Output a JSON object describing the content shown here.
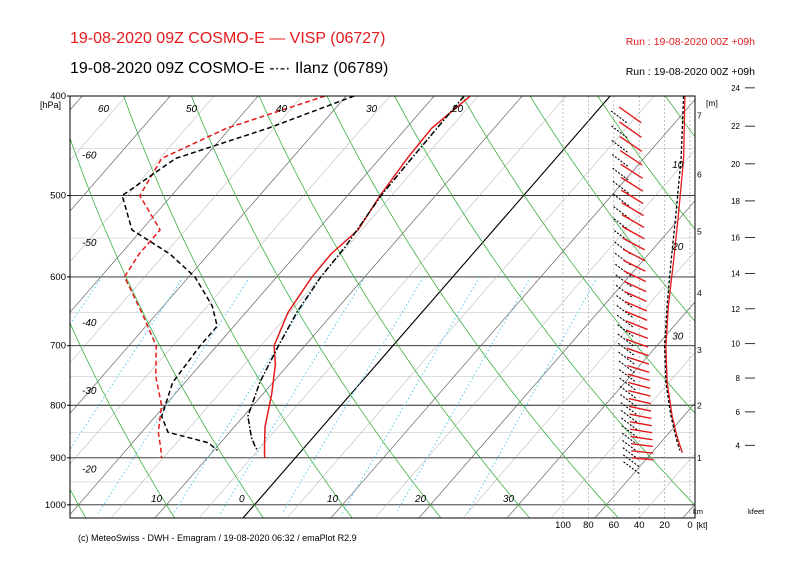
{
  "header": {
    "line1": "19-08-2020 09Z COSMO-E  — VISP (06727)",
    "line2": "19-08-2020 09Z COSMO-E  -·-· Ilanz (06789)",
    "run1": "Run : 19-08-2020 00Z +09h",
    "run2": "Run : 19-08-2020 00Z +09h",
    "color_visp": "#e41a1c",
    "color_ilanz": "#000000"
  },
  "footer": "(c) MeteoSwiss - DWH - Emagram / 19-08-2020  06:32 / emaPlot R2.9",
  "chart_data": {
    "type": "line",
    "title": "Emagram",
    "pressure_axis": {
      "unit_label": "[hPa]",
      "range": [
        1030,
        400
      ],
      "ticks": [
        400,
        500,
        600,
        700,
        800,
        900,
        1000
      ],
      "scale": "log"
    },
    "temperature_axis": {
      "ticks": [
        -70,
        -60,
        -50,
        -40,
        -30,
        -20,
        -10,
        0,
        10,
        20,
        30
      ],
      "tick_labels": [
        "-60",
        "-50",
        "-40",
        "-30",
        "-20",
        "10",
        "0",
        "10",
        "20",
        "30"
      ],
      "skew": true
    },
    "left_isotherm_labels": [
      "-60",
      "-50",
      "-40",
      "-30",
      "-20"
    ],
    "upper_isotherm_labels": [
      "60",
      "50",
      "40",
      "30",
      "20"
    ],
    "height_m_axis": {
      "label": "[m]",
      "ticks": [
        {
          "km": 7,
          "p": 418
        },
        {
          "km": 6,
          "p": 477
        },
        {
          "km": 5,
          "p": 542
        },
        {
          "km": 4,
          "p": 622
        },
        {
          "km": 3,
          "p": 707
        },
        {
          "km": 2,
          "p": 800
        },
        {
          "km": 1,
          "p": 900
        }
      ],
      "unit": "km"
    },
    "height_kfeet_axis": {
      "ticks": [
        24,
        22,
        20,
        18,
        16,
        14,
        12,
        10,
        8,
        6,
        4
      ],
      "unit": "kfeet"
    },
    "wind_axis": {
      "ticks": [
        100,
        80,
        60,
        40,
        20,
        0
      ],
      "unit": "[kt]"
    },
    "wind_profile_labels": [
      {
        "text": "10",
        "p": 470
      },
      {
        "text": "20",
        "p": 565
      },
      {
        "text": "30",
        "p": 690
      }
    ],
    "series": [
      {
        "name": "VISP (06727) temperature",
        "color": "#e41a1c",
        "style": "solid",
        "points": [
          [
            -15.9,
            400
          ],
          [
            -17.1,
            430
          ],
          [
            -16.9,
            460
          ],
          [
            -16.3,
            500
          ],
          [
            -15.4,
            540
          ],
          [
            -16.1,
            570
          ],
          [
            -16.0,
            600
          ],
          [
            -15.2,
            650
          ],
          [
            -13.5,
            700
          ],
          [
            -11.5,
            730
          ],
          [
            -9.0,
            780
          ],
          [
            -6.5,
            840
          ],
          [
            -4.5,
            880
          ],
          [
            -3.5,
            900
          ]
        ]
      },
      {
        "name": "VISP (06727) dew point",
        "color": "#e41a1c",
        "style": "dash",
        "points": [
          [
            -32.4,
            400
          ],
          [
            -40.4,
            430
          ],
          [
            -44.8,
            460
          ],
          [
            -43.6,
            500
          ],
          [
            -37.9,
            540
          ],
          [
            -37.9,
            570
          ],
          [
            -37.3,
            600
          ],
          [
            -31.8,
            650
          ],
          [
            -26.9,
            700
          ],
          [
            -23.9,
            750
          ],
          [
            -20.4,
            800
          ],
          [
            -18.1,
            850
          ],
          [
            -16.3,
            880
          ],
          [
            -15.2,
            900
          ]
        ]
      },
      {
        "name": "Ilanz (06789) temperature",
        "color": "#000000",
        "style": "dashdot",
        "points": [
          [
            -16.6,
            400
          ],
          [
            -16.4,
            460
          ],
          [
            -16.2,
            500
          ],
          [
            -15.2,
            560
          ],
          [
            -15.0,
            600
          ],
          [
            -14.2,
            650
          ],
          [
            -13.0,
            700
          ],
          [
            -11.5,
            760
          ],
          [
            -9.5,
            820
          ],
          [
            -7.0,
            860
          ],
          [
            -5.5,
            880
          ],
          [
            -5.0,
            885
          ]
        ]
      },
      {
        "name": "Ilanz (06789) dew point",
        "color": "#000000",
        "style": "dash",
        "points": [
          [
            -29.1,
            400
          ],
          [
            -35.7,
            430
          ],
          [
            -43.2,
            460
          ],
          [
            -45.6,
            500
          ],
          [
            -41.1,
            540
          ],
          [
            -34.4,
            570
          ],
          [
            -29.3,
            600
          ],
          [
            -24.5,
            640
          ],
          [
            -21.9,
            670
          ],
          [
            -21.9,
            700
          ],
          [
            -21.4,
            760
          ],
          [
            -19.3,
            820
          ],
          [
            -17.0,
            850
          ],
          [
            -11.4,
            870
          ],
          [
            -9.6,
            885
          ]
        ]
      }
    ],
    "wind_speed_series": [
      {
        "name": "VISP (06727) wind speed",
        "color": "#e41a1c",
        "points": [
          [
            4,
            400
          ],
          [
            5,
            460
          ],
          [
            9,
            520
          ],
          [
            13,
            580
          ],
          [
            17,
            640
          ],
          [
            19,
            700
          ],
          [
            18,
            760
          ],
          [
            14,
            820
          ],
          [
            10,
            860
          ],
          [
            6,
            890
          ]
        ]
      },
      {
        "name": "Ilanz (06789) wind speed",
        "color": "#000000",
        "points": [
          [
            5,
            400
          ],
          [
            7,
            460
          ],
          [
            11,
            520
          ],
          [
            15,
            580
          ],
          [
            18,
            640
          ],
          [
            20,
            700
          ],
          [
            19,
            760
          ],
          [
            15,
            820
          ],
          [
            11,
            860
          ],
          [
            8,
            885
          ]
        ]
      }
    ]
  }
}
